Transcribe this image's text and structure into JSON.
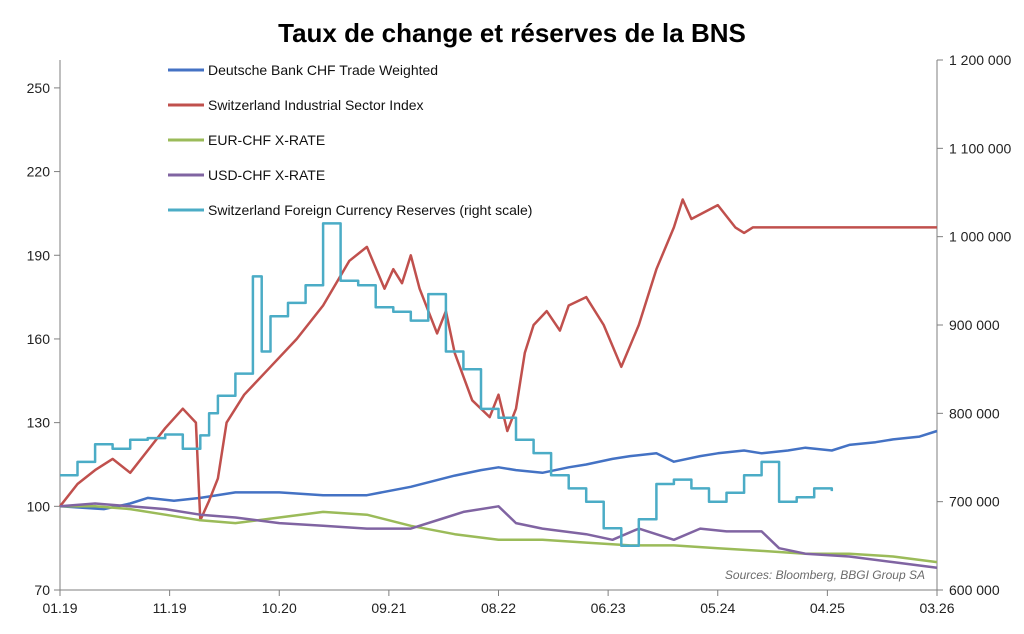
{
  "chart_data": {
    "type": "line",
    "title": "Taux de change et réserves de la BNS",
    "source_note": "Sources: Bloomberg, BBGI Group SA",
    "x_ticks": [
      "01.19",
      "11.19",
      "10.20",
      "09.21",
      "08.22",
      "06.23",
      "05.24",
      "04.25",
      "03.26"
    ],
    "y_left": {
      "min": 70,
      "max": 260,
      "ticks": [
        "70",
        "100",
        "130",
        "160",
        "190",
        "220",
        "250"
      ]
    },
    "y_right": {
      "min": 600000,
      "max": 1200000,
      "ticks": [
        "600 000",
        "700 000",
        "800 000",
        "900 000",
        "1 000 000",
        "1 100 000",
        "1 200 000"
      ]
    },
    "colors": {
      "db": "#4472c4",
      "industrial": "#c0504d",
      "eurchf": "#9bbb59",
      "usdchf": "#8064a2",
      "reserves": "#4bacc6"
    },
    "series": [
      {
        "key": "db",
        "name": "Deutsche Bank CHF Trade Weighted",
        "axis": "left",
        "x": [
          0,
          0.05,
          0.08,
          0.1,
          0.13,
          0.16,
          0.2,
          0.25,
          0.3,
          0.35,
          0.4,
          0.45,
          0.48,
          0.5,
          0.52,
          0.55,
          0.58,
          0.6,
          0.63,
          0.65,
          0.68,
          0.7,
          0.73,
          0.75,
          0.78,
          0.8,
          0.83,
          0.85,
          0.88,
          0.9,
          0.93,
          0.95,
          0.98,
          1.0
        ],
        "values": [
          100,
          99,
          101,
          103,
          102,
          103,
          105,
          105,
          104,
          104,
          107,
          111,
          113,
          114,
          113,
          112,
          114,
          115,
          117,
          118,
          119,
          116,
          118,
          119,
          120,
          119,
          120,
          121,
          120,
          122,
          123,
          124,
          125,
          127
        ]
      },
      {
        "key": "industrial",
        "name": "Switzerland Industrial Sector Index",
        "axis": "left",
        "x": [
          0,
          0.02,
          0.04,
          0.06,
          0.08,
          0.1,
          0.12,
          0.14,
          0.155,
          0.16,
          0.17,
          0.18,
          0.19,
          0.21,
          0.24,
          0.27,
          0.3,
          0.33,
          0.35,
          0.37,
          0.38,
          0.39,
          0.4,
          0.41,
          0.43,
          0.44,
          0.45,
          0.47,
          0.49,
          0.5,
          0.51,
          0.52,
          0.53,
          0.54,
          0.555,
          0.57,
          0.58,
          0.6,
          0.62,
          0.64,
          0.66,
          0.68,
          0.7,
          0.71,
          0.72,
          0.75,
          0.77,
          0.78,
          0.79,
          0.8,
          0.83,
          0.87,
          0.92,
          1.0
        ],
        "values": [
          100,
          108,
          113,
          117,
          112,
          120,
          128,
          135,
          130,
          95,
          102,
          110,
          130,
          140,
          150,
          160,
          172,
          188,
          193,
          178,
          185,
          180,
          190,
          178,
          162,
          170,
          155,
          138,
          132,
          140,
          127,
          135,
          155,
          165,
          170,
          163,
          172,
          175,
          165,
          150,
          165,
          185,
          200,
          210,
          203,
          208,
          200,
          198,
          200,
          200,
          200,
          200,
          200,
          200
        ]
      },
      {
        "key": "eurchf",
        "name": "EUR-CHF X-RATE",
        "axis": "left",
        "x": [
          0,
          0.04,
          0.08,
          0.12,
          0.16,
          0.2,
          0.25,
          0.3,
          0.35,
          0.4,
          0.45,
          0.5,
          0.55,
          0.6,
          0.65,
          0.7,
          0.75,
          0.8,
          0.85,
          0.9,
          0.95,
          1.0
        ],
        "values": [
          100,
          100,
          99,
          97,
          95,
          94,
          96,
          98,
          97,
          93,
          90,
          88,
          88,
          87,
          86,
          86,
          85,
          84,
          83,
          83,
          82,
          80
        ]
      },
      {
        "key": "usdchf",
        "name": "USD-CHF X-RATE",
        "axis": "left",
        "x": [
          0,
          0.04,
          0.08,
          0.12,
          0.16,
          0.2,
          0.25,
          0.3,
          0.35,
          0.4,
          0.44,
          0.46,
          0.5,
          0.52,
          0.55,
          0.6,
          0.63,
          0.66,
          0.7,
          0.73,
          0.76,
          0.8,
          0.82,
          0.85,
          0.9,
          0.95,
          1.0
        ],
        "values": [
          100,
          101,
          100,
          99,
          97,
          96,
          94,
          93,
          92,
          92,
          96,
          98,
          100,
          94,
          92,
          90,
          88,
          92,
          88,
          92,
          91,
          91,
          85,
          83,
          82,
          80,
          78
        ]
      },
      {
        "key": "reserves",
        "name": "Switzerland Foreign Currency Reserves (right scale)",
        "axis": "right",
        "x": [
          0,
          0.02,
          0.04,
          0.06,
          0.08,
          0.1,
          0.12,
          0.14,
          0.16,
          0.17,
          0.18,
          0.2,
          0.22,
          0.23,
          0.24,
          0.26,
          0.28,
          0.3,
          0.32,
          0.34,
          0.36,
          0.38,
          0.4,
          0.42,
          0.44,
          0.46,
          0.48,
          0.5,
          0.52,
          0.54,
          0.56,
          0.58,
          0.6,
          0.62,
          0.64,
          0.66,
          0.68,
          0.7,
          0.72,
          0.74,
          0.76,
          0.78,
          0.8,
          0.82,
          0.84,
          0.86,
          0.88
        ],
        "values": [
          730000,
          745000,
          765000,
          760000,
          770000,
          772000,
          776000,
          760000,
          775000,
          800000,
          820000,
          845000,
          955000,
          870000,
          910000,
          925000,
          945000,
          1015000,
          950000,
          945000,
          920000,
          915000,
          905000,
          935000,
          870000,
          850000,
          805000,
          795000,
          770000,
          755000,
          730000,
          715000,
          700000,
          670000,
          650000,
          680000,
          720000,
          725000,
          715000,
          700000,
          710000,
          730000,
          745000,
          700000,
          705000,
          715000,
          712000
        ]
      }
    ]
  }
}
